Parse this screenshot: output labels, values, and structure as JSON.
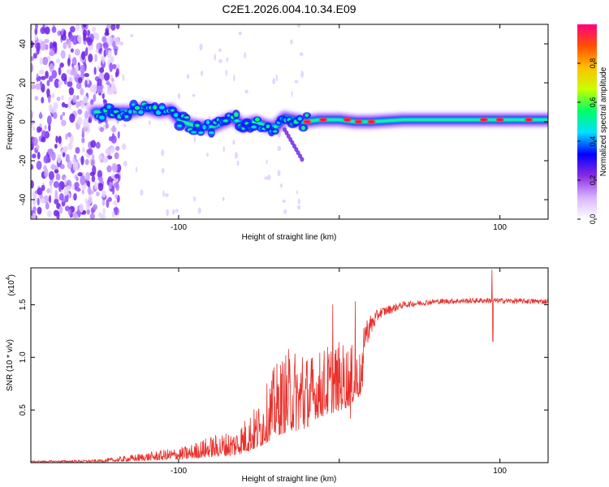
{
  "title": "C2E1.2026.004.10.34.E09",
  "chart_data": [
    {
      "type": "heatmap",
      "title": "C2E1.2026.004.10.34.E09",
      "xlabel": "Height of straight line (km)",
      "ylabel": "Frequency (Hz)",
      "xlim": [
        -192,
        130
      ],
      "ylim": [
        -50,
        50
      ],
      "xticks": [
        -100,
        0,
        100
      ],
      "xtick_labels": [
        "-100",
        "",
        "100"
      ],
      "yticks": [
        -40,
        -20,
        0,
        20,
        40
      ],
      "ytick_labels": [
        "-40",
        "-20",
        "0",
        "20",
        "40"
      ],
      "colorbar": {
        "label": "Normalized spectral amplitude",
        "range": [
          0,
          1
        ],
        "ticks": [
          0.0,
          0.2,
          0.4,
          0.6,
          0.8
        ],
        "tick_labels": [
          "0.0",
          "0.2",
          "0.4",
          "0.6",
          "0.8"
        ],
        "colors": [
          "#ffffff",
          "#d8b4ff",
          "#8a2be2",
          "#0000ff",
          "#00e0ff",
          "#00ff66",
          "#c8ff00",
          "#ffc000",
          "#ff5000",
          "#ff0080"
        ]
      },
      "noise_region_x": [
        -192,
        -137
      ],
      "ridge": [
        {
          "x": -152,
          "y": 5
        },
        {
          "x": -140,
          "y": 5
        },
        {
          "x": -130,
          "y": 5
        },
        {
          "x": -120,
          "y": 7
        },
        {
          "x": -112,
          "y": 5
        },
        {
          "x": -105,
          "y": 6
        },
        {
          "x": -98,
          "y": 0
        },
        {
          "x": -90,
          "y": -2
        },
        {
          "x": -80,
          "y": -3
        },
        {
          "x": -72,
          "y": 0
        },
        {
          "x": -66,
          "y": 2
        },
        {
          "x": -60,
          "y": -2
        },
        {
          "x": -52,
          "y": 0
        },
        {
          "x": -46,
          "y": -2
        },
        {
          "x": -40,
          "y": -3
        },
        {
          "x": -34,
          "y": 2
        },
        {
          "x": -28,
          "y": 1
        },
        {
          "x": -22,
          "y": 0
        },
        {
          "x": -12,
          "y": 1
        },
        {
          "x": 0,
          "y": 1
        },
        {
          "x": 10,
          "y": 0
        },
        {
          "x": 20,
          "y": 0
        },
        {
          "x": 40,
          "y": 1
        },
        {
          "x": 60,
          "y": 1
        },
        {
          "x": 80,
          "y": 1
        },
        {
          "x": 100,
          "y": 1
        },
        {
          "x": 130,
          "y": 1
        }
      ],
      "hot_spots": [
        {
          "x": -20,
          "y": 0
        },
        {
          "x": -10,
          "y": 1
        },
        {
          "x": 5,
          "y": 1
        },
        {
          "x": 12,
          "y": 0
        },
        {
          "x": 20,
          "y": 0
        },
        {
          "x": 90,
          "y": 1
        },
        {
          "x": 100,
          "y": 1
        },
        {
          "x": 118,
          "y": 1
        }
      ]
    },
    {
      "type": "line",
      "xlabel": "Height of straight line (km)",
      "ylabel": "SNR (10 * v/v)",
      "y_multiplier_label": "(x10",
      "y_multiplier_exponent": "4",
      "y_multiplier_close": ")",
      "xlim": [
        -192,
        130
      ],
      "ylim": [
        0,
        1.85
      ],
      "xticks": [
        -100,
        0,
        100
      ],
      "xtick_labels": [
        "-100",
        "",
        "100"
      ],
      "yticks": [
        0.5,
        1.0,
        1.5
      ],
      "ytick_labels": [
        "0.5",
        "1.0",
        "1.5"
      ],
      "series": [
        {
          "name": "SNR",
          "color": "#e8302b",
          "envelope": [
            {
              "x": -192,
              "base": 0.01,
              "amp": 0.01
            },
            {
              "x": -150,
              "base": 0.01,
              "amp": 0.02
            },
            {
              "x": -135,
              "base": 0.02,
              "amp": 0.04
            },
            {
              "x": -115,
              "base": 0.04,
              "amp": 0.07
            },
            {
              "x": -95,
              "base": 0.06,
              "amp": 0.1
            },
            {
              "x": -80,
              "base": 0.1,
              "amp": 0.16
            },
            {
              "x": -65,
              "base": 0.12,
              "amp": 0.2
            },
            {
              "x": -50,
              "base": 0.25,
              "amp": 0.35
            },
            {
              "x": -40,
              "base": 0.45,
              "amp": 0.55
            },
            {
              "x": -30,
              "base": 0.55,
              "amp": 0.65
            },
            {
              "x": -22,
              "base": 0.55,
              "amp": 0.6
            },
            {
              "x": -15,
              "base": 0.75,
              "amp": 0.5
            },
            {
              "x": -5,
              "base": 0.85,
              "amp": 0.55
            },
            {
              "x": 5,
              "base": 0.95,
              "amp": 0.5
            },
            {
              "x": 15,
              "base": 1.2,
              "amp": 0.3
            },
            {
              "x": 25,
              "base": 1.42,
              "amp": 0.1
            },
            {
              "x": 40,
              "base": 1.5,
              "amp": 0.06
            },
            {
              "x": 60,
              "base": 1.53,
              "amp": 0.05
            },
            {
              "x": 90,
              "base": 1.54,
              "amp": 0.05
            },
            {
              "x": 130,
              "base": 1.53,
              "amp": 0.05
            }
          ],
          "features": [
            {
              "x": -23,
              "y": 1.0
            },
            {
              "x": -4,
              "y": 1.5
            },
            {
              "x": 7,
              "y": 0.42
            },
            {
              "x": 10,
              "y": 1.53
            },
            {
              "x": 95,
              "y": 1.83
            },
            {
              "x": 95.6,
              "y": 1.15
            }
          ]
        }
      ]
    }
  ]
}
